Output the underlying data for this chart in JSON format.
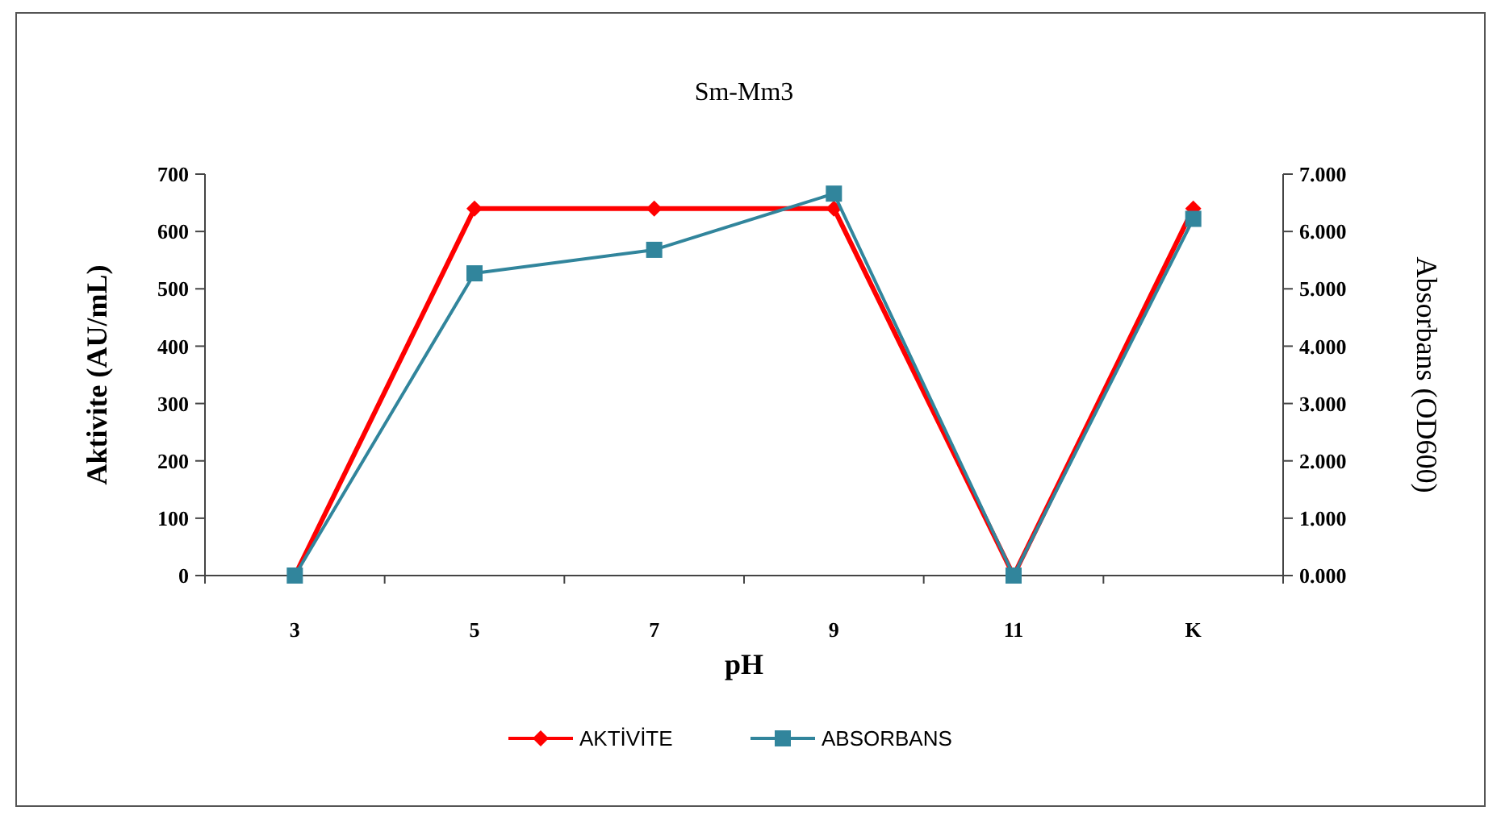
{
  "chart_data": {
    "type": "line",
    "title": "Sm-Mm3",
    "xlabel": "pH",
    "ylabel": "Aktivite (AU/mL)",
    "y2label": "Absorbans (OD600)",
    "categories": [
      "3",
      "5",
      "7",
      "9",
      "11",
      "K"
    ],
    "series": [
      {
        "name": "AKTİVİTE",
        "color": "#ff0000",
        "marker": "diamond",
        "values": [
          0,
          640,
          640,
          640,
          0,
          640
        ]
      },
      {
        "name": "ABSORBANS",
        "color": "#31859c",
        "marker": "square",
        "axis": "y2",
        "values": [
          0,
          5.27,
          5.68,
          6.66,
          0,
          6.22
        ]
      }
    ],
    "ylim": [
      0,
      700
    ],
    "yticks": [
      0,
      100,
      200,
      300,
      400,
      500,
      600,
      700
    ],
    "y2lim": [
      0,
      7
    ],
    "y2ticks": [
      {
        "value": 0,
        "label": "0.000"
      },
      {
        "value": 1,
        "label": "1.000"
      },
      {
        "value": 2,
        "label": "2.000"
      },
      {
        "value": 3,
        "label": "3.000"
      },
      {
        "value": 4,
        "label": "4.000"
      },
      {
        "value": 5,
        "label": "5.000"
      },
      {
        "value": 6,
        "label": "6.000"
      },
      {
        "value": 7,
        "label": "7.000"
      }
    ],
    "legend": "bottom",
    "grid": false
  }
}
